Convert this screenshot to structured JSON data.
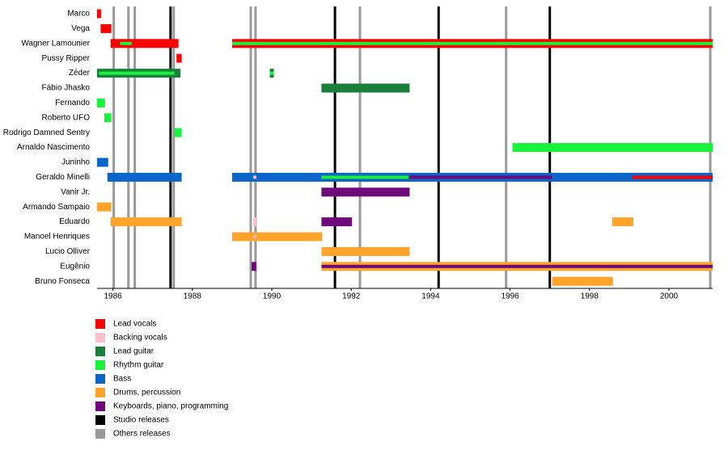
{
  "chart_data": {
    "type": "timeline",
    "categories": [
      "Marco",
      "Vega",
      "Wagner Lamounier",
      "Pussy Ripper",
      "Zéder",
      "Fábio Jhasko",
      "Fernando",
      "Roberto UFO",
      "Rodrigo Damned Sentry",
      "Arnaldo Nascimento",
      "Juninho",
      "Geraldo Minelli",
      "Vanir Jr.",
      "Armando Sampaio",
      "Eduardo",
      "Manoel Henriques",
      "Lucio Olliver",
      "Eugênio",
      "Bruno Fonseca"
    ],
    "xlim": [
      1985.6,
      2001.1
    ],
    "xticks": [
      1986,
      1988,
      1990,
      1992,
      1994,
      1996,
      1998,
      2000
    ],
    "series": [
      {
        "name": "Lead vocals",
        "color": "#ff0000",
        "values": [
          [
            [
              1985.6,
              1985.7
            ]
          ],
          [
            [
              1985.69,
              1985.96
            ]
          ],
          [
            [
              1985.94,
              1987.65
            ],
            [
              1989.0,
              2001.1
            ]
          ],
          [
            [
              1987.6,
              1987.73
            ]
          ],
          [],
          [],
          [],
          [],
          [],
          [],
          [],
          [
            [
              1999.08,
              2001.1
            ]
          ],
          [],
          [],
          [],
          [],
          [],
          [],
          []
        ]
      },
      {
        "name": "Backing vocals",
        "color": "#ffc0cb",
        "values": [
          [],
          [],
          [],
          [],
          [],
          [],
          [],
          [],
          [],
          [],
          [],
          [
            [
              1989.53,
              1989.61
            ]
          ],
          [],
          [],
          [
            [
              1989.53,
              1989.61
            ]
          ],
          [
            [
              1989.53,
              1989.61
            ]
          ],
          [],
          [],
          []
        ]
      },
      {
        "name": "Lead guitar",
        "color": "#1b7f3c",
        "values": [
          [],
          [],
          [],
          [],
          [
            [
              1985.6,
              1987.7
            ],
            [
              1989.95,
              1990.05
            ]
          ],
          [
            [
              1991.25,
              1993.47
            ]
          ],
          [],
          [],
          [],
          [],
          [],
          [],
          [],
          [],
          [],
          [],
          [],
          [],
          []
        ]
      },
      {
        "name": "Rhythm guitar",
        "color": "#19f23a",
        "values": [
          [],
          [],
          [
            [
              1986.18,
              1986.47
            ],
            [
              1989.0,
              2001.1
            ]
          ],
          [],
          [
            [
              1985.65,
              1987.55
            ],
            [
              1989.95,
              1990.05
            ]
          ],
          [],
          [
            [
              1985.6,
              1985.8
            ]
          ],
          [
            [
              1985.78,
              1985.96
            ]
          ],
          [
            [
              1987.55,
              1987.73
            ]
          ],
          [
            [
              1996.06,
              2001.1
            ]
          ],
          [],
          [
            [
              1991.25,
              1993.45
            ]
          ],
          [],
          [],
          [],
          [],
          [],
          [],
          []
        ]
      },
      {
        "name": "Bass",
        "color": "#0a66c8",
        "values": [
          [],
          [],
          [],
          [],
          [],
          [],
          [],
          [],
          [],
          [],
          [
            [
              1985.6,
              1985.88
            ]
          ],
          [
            [
              1985.86,
              1987.73
            ],
            [
              1989.0,
              2001.1
            ]
          ],
          [],
          [],
          [],
          [],
          [],
          [],
          []
        ]
      },
      {
        "name": "Drums, percussion",
        "color": "#ffa42b",
        "values": [
          [],
          [],
          [],
          [],
          [],
          [],
          [],
          [],
          [],
          [],
          [],
          [],
          [],
          [
            [
              1985.6,
              1985.96
            ]
          ],
          [
            [
              1985.94,
              1987.73
            ],
            [
              1998.57,
              1999.1
            ]
          ],
          [
            [
              1989.0,
              1991.27
            ]
          ],
          [
            [
              1991.25,
              1993.47
            ]
          ],
          [
            [
              1991.25,
              2001.1
            ]
          ],
          [
            [
              1997.06,
              1998.59
            ]
          ]
        ]
      },
      {
        "name": "Keyboards, piano, programming",
        "color": "#6e0a7c",
        "values": [
          [],
          [],
          [],
          [],
          [],
          [],
          [],
          [],
          [],
          [],
          [],
          [
            [
              1993.45,
              1997.06
            ]
          ],
          [
            [
              1991.25,
              1993.47
            ]
          ],
          [],
          [
            [
              1991.25,
              1992.02
            ]
          ],
          [],
          [],
          [
            [
              1989.49,
              1989.61
            ],
            [
              1991.25,
              2001.1
            ]
          ],
          []
        ]
      }
    ],
    "releases": [
      {
        "name": "Studio releases",
        "color": "#000000",
        "values": [
          1987.45,
          1991.59,
          1994.2,
          1997.0
        ]
      },
      {
        "name": "Others releases",
        "color": "#999999",
        "values": [
          1986.02,
          1986.39,
          1986.55,
          1987.53,
          1989.47,
          1989.59,
          1992.22,
          1995.9,
          2001.04
        ]
      }
    ]
  }
}
